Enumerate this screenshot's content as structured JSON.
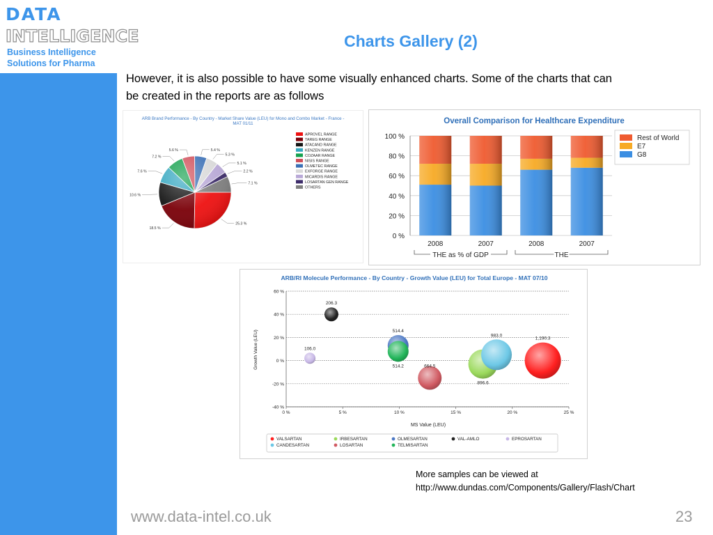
{
  "logo": {
    "line1": "DATA",
    "line2": "INTELLIGENCE",
    "tag1": "Business Intelligence",
    "tag2": "Solutions for Pharma"
  },
  "slide": {
    "title": "Charts Gallery (2)",
    "intro_line1": "However, it is also possible to have some visually enhanced charts. Some of the charts that can",
    "intro_line2": "be created in the reports are as follows",
    "more_line1": "More samples can be viewed at",
    "more_line2": "http://www.dundas.com/Components/Gallery/Flash/Chart",
    "footer_url": "www.data-intel.co.uk",
    "page_number": "23"
  },
  "colors": {
    "accent": "#3d95ea",
    "footer_text": "#9a9a9a"
  },
  "chart_data": [
    {
      "type": "pie",
      "title": "ARB Brand Performance - By Country - Market Share Value (LEU) for Mono and Combo Market - France - MAT 01/11",
      "slices": [
        {
          "label": "APROVEL RANGE",
          "value": 25.3,
          "value_label": "25.3 %",
          "color": "#ee1111"
        },
        {
          "label": "TAREG RANGE",
          "value": 18.5,
          "value_label": "18.5 %",
          "color": "#7a0008"
        },
        {
          "label": "ATACAND RANGE",
          "value": 10.6,
          "value_label": "10.6 %",
          "color": "#141414"
        },
        {
          "label": "KENZEN RANGE",
          "value": 7.6,
          "value_label": "7.6 %",
          "color": "#35a7c0"
        },
        {
          "label": "COZAAR RANGE",
          "value": 7.2,
          "value_label": "7.2 %",
          "color": "#13a04d"
        },
        {
          "label": "NISIS RANGE",
          "value": 5.6,
          "value_label": "5.6 %",
          "color": "#d04e59"
        },
        {
          "label": "OLMETEC RANGE",
          "value": 5.4,
          "value_label": "5.4 %",
          "color": "#3a6fb5"
        },
        {
          "label": "EXFORGE RANGE",
          "value": 5.3,
          "value_label": "5.3 %",
          "color": "#d9d9d9"
        },
        {
          "label": "MICARDIS RANGE",
          "value": 5.1,
          "value_label": "5.1 %",
          "color": "#b9a9d7"
        },
        {
          "label": "LOSARTAN GEN RANGE",
          "value": 2.2,
          "value_label": "2.2 %",
          "color": "#3d2c6a"
        },
        {
          "label": "OTHERS",
          "value": 7.1,
          "value_label": "7.1 %",
          "color": "#7f7f7f"
        }
      ],
      "legend_position": "right"
    },
    {
      "type": "bar",
      "stacked": true,
      "title": "Overall Comparison for Healthcare Expenditure",
      "categories": [
        "2008",
        "2007",
        "2008",
        "2007"
      ],
      "groups": [
        {
          "label": "THE as % of GDP",
          "categories": [
            0,
            1
          ]
        },
        {
          "label": "THE",
          "categories": [
            2,
            3
          ]
        }
      ],
      "series": [
        {
          "name": "G8",
          "values": [
            51,
            50,
            66,
            68
          ],
          "color": "#3b8ee2"
        },
        {
          "name": "E7",
          "values": [
            21,
            22,
            11,
            10
          ],
          "color": "#f7aa24"
        },
        {
          "name": "Rest of World",
          "values": [
            28,
            28,
            23,
            22
          ],
          "color": "#ef5a2f"
        }
      ],
      "legend_order": [
        "Rest of World",
        "E7",
        "G8"
      ],
      "ylim": [
        0,
        100
      ],
      "yticks": [
        "0 %",
        "20 %",
        "40 %",
        "60 %",
        "80 %",
        "100 %"
      ],
      "grid": true,
      "legend_position": "right"
    },
    {
      "type": "scatter",
      "bubble": true,
      "title": "ARB/RI Molecule Performance - By Country - Growth Value (LEU) for Total Europe - MAT 07/10",
      "xlabel": "MS Value (LEU)",
      "ylabel": "Growth Value (LEU)",
      "xlim": [
        0,
        25
      ],
      "ylim": [
        -40,
        60
      ],
      "xticks": [
        "0 %",
        "5 %",
        "10 %",
        "15 %",
        "20 %",
        "25 %"
      ],
      "yticks": [
        "-40 %",
        "-20 %",
        "0 %",
        "20 %",
        "40 %",
        "60 %"
      ],
      "grid": true,
      "points": [
        {
          "name": "VAL-AMLO",
          "x": 4.0,
          "y": 40,
          "label": "206.3",
          "color": "#222222",
          "r": 10
        },
        {
          "name": "EPROSARTAN",
          "x": 2.1,
          "y": 2,
          "label": "106.0",
          "color": "#c7b7e6",
          "r": 8
        },
        {
          "name": "OLMESARTAN",
          "x": 9.9,
          "y": 13,
          "label": "514.4",
          "color": "#4c78c4",
          "r": 15
        },
        {
          "name": "TELMISARTAN",
          "x": 9.9,
          "y": 8,
          "label": "514.2",
          "color": "#22b55a",
          "r": 15
        },
        {
          "name": "LOSARTAN",
          "x": 12.7,
          "y": -15,
          "label": "664.5",
          "color": "#d05a62",
          "r": 17
        },
        {
          "name": "IRBESARTAN",
          "x": 17.4,
          "y": -3,
          "label": "896.6",
          "color": "#9bd95c",
          "r": 21
        },
        {
          "name": "CANDESARTAN",
          "x": 18.6,
          "y": 5,
          "label": "983.0",
          "color": "#6dc8e6",
          "r": 22
        },
        {
          "name": "VALSARTAN",
          "x": 22.7,
          "y": 0,
          "label": "1,190.3",
          "color": "#ff2020",
          "r": 26
        }
      ],
      "legend": [
        "VALSARTAN",
        "IRBESARTAN",
        "OLMESARTAN",
        "VAL-AMLO",
        "EPROSARTAN",
        "CANDESARTAN",
        "LOSARTAN",
        "TELMISARTAN"
      ],
      "legend_position": "bottom"
    }
  ]
}
